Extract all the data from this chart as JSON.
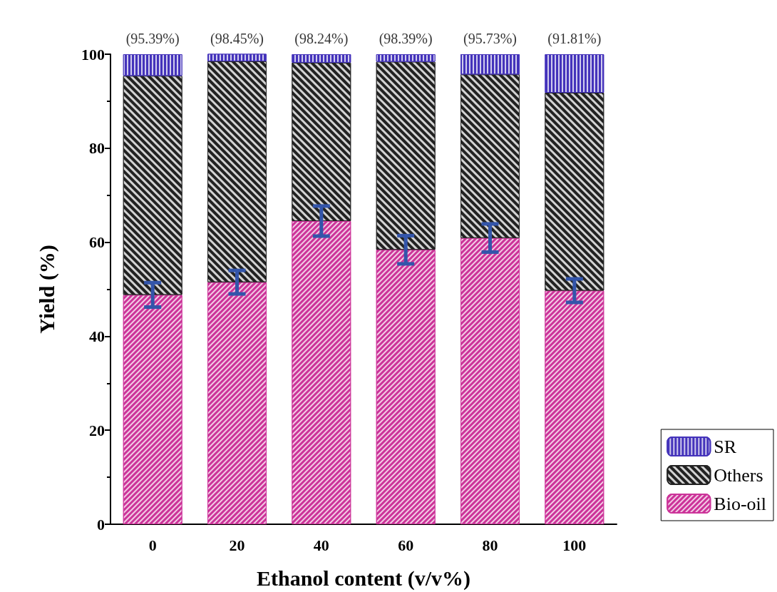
{
  "chart_data": {
    "type": "bar",
    "stacked": true,
    "xlabel": "Ethanol content (v/v%)",
    "ylabel": "Yield (%)",
    "categories": [
      "0",
      "20",
      "40",
      "60",
      "80",
      "100"
    ],
    "series": [
      {
        "name": "Bio-oil",
        "color": "#cc3399",
        "values": [
          48.8,
          51.5,
          64.5,
          58.4,
          60.9,
          49.7
        ],
        "errors": [
          2.6,
          2.5,
          3.2,
          3.0,
          3.0,
          2.5
        ]
      },
      {
        "name": "Others",
        "color": "#222222",
        "values": [
          46.6,
          47.0,
          33.7,
          40.0,
          34.8,
          42.1
        ]
      },
      {
        "name": "SR",
        "color": "#4433bb",
        "values": [
          4.6,
          1.6,
          1.8,
          1.6,
          4.3,
          8.2
        ]
      }
    ],
    "ylim": [
      0,
      100
    ],
    "yticks": [
      0,
      20,
      40,
      60,
      80,
      100
    ],
    "legend": "bottom right",
    "annotations": [
      {
        "text": "(95.39%)",
        "x": "0",
        "y": 100
      },
      {
        "text": "(98.45%)",
        "x": "20",
        "y": 100
      },
      {
        "text": "(98.24%)",
        "x": "40",
        "y": 100
      },
      {
        "text": "(98.39%)",
        "x": "60",
        "y": 100
      },
      {
        "text": "(95.73%)",
        "x": "80",
        "y": 100
      },
      {
        "text": "(91.81%)",
        "x": "100",
        "y": 100
      }
    ]
  }
}
